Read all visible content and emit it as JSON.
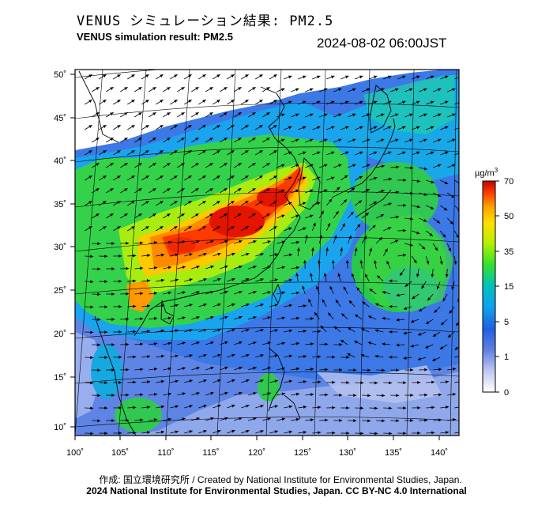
{
  "header": {
    "title_jp": "VENUS シミュレーション結果: PM2.5",
    "title_en": "VENUS simulation result: PM2.5",
    "timestamp": "2024-08-02 06:00JST"
  },
  "map": {
    "lon_ticks": [
      "100˚",
      "105˚",
      "110˚",
      "115˚",
      "120˚",
      "125˚",
      "130˚",
      "135˚",
      "140˚"
    ],
    "lat_ticks": [
      "50˚",
      "45˚",
      "40˚",
      "35˚",
      "30˚",
      "25˚",
      "20˚",
      "15˚",
      "10˚"
    ]
  },
  "colorbar": {
    "unit": "µg/m",
    "unit_sup": "3",
    "ticks": [
      "70",
      "50",
      "35",
      "15",
      "5",
      "1",
      "0"
    ],
    "colors": [
      "#c80000",
      "#ff4000",
      "#ffa000",
      "#ffe000",
      "#b0f000",
      "#30e030",
      "#00c0c0",
      "#10a0f0",
      "#2060e0",
      "#6080e0",
      "#c0c8f0",
      "#ffffff"
    ]
  },
  "footer": {
    "credit_line1": "作成: 国立環境研究所 / Created by National Institute for Environmental Studies, Japan.",
    "credit_line2": "2024 National Institute for Environmental Studies, Japan. CC BY-NC 4.0 International"
  }
}
